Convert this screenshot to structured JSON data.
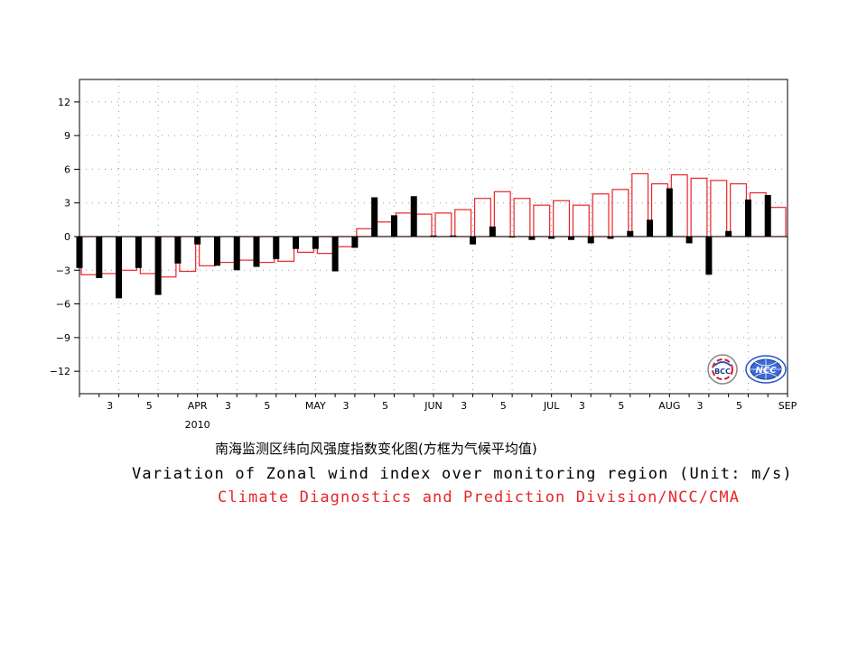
{
  "chart_data": {
    "type": "bar",
    "title": "",
    "xlabel": "",
    "ylabel": "",
    "ylim": [
      -14,
      14
    ],
    "yticks": [
      12,
      9,
      6,
      3,
      0,
      -3,
      -6,
      -9,
      -12
    ],
    "ytick_labels": [
      "12",
      "9",
      "6",
      "3",
      "0",
      "−3",
      "−6",
      "−9",
      "−12"
    ],
    "grid": true,
    "year_label": "2010",
    "xtick_labels": [
      {
        "pentad": 2,
        "label": "3"
      },
      {
        "pentad": 4,
        "label": "5"
      },
      {
        "pentad": 6,
        "label": "APR"
      },
      {
        "pentad": 8,
        "label": "3"
      },
      {
        "pentad": 10,
        "label": "5"
      },
      {
        "pentad": 12,
        "label": "MAY"
      },
      {
        "pentad": 14,
        "label": "3"
      },
      {
        "pentad": 16,
        "label": "5"
      },
      {
        "pentad": 18,
        "label": "JUN"
      },
      {
        "pentad": 20,
        "label": "3"
      },
      {
        "pentad": 22,
        "label": "5"
      },
      {
        "pentad": 24,
        "label": "JUL"
      },
      {
        "pentad": 26,
        "label": "3"
      },
      {
        "pentad": 28,
        "label": "5"
      },
      {
        "pentad": 30,
        "label": "AUG"
      },
      {
        "pentad": 32,
        "label": "3"
      },
      {
        "pentad": 34,
        "label": "5"
      },
      {
        "pentad": 36,
        "label": "SEP"
      }
    ],
    "series": [
      {
        "kind": "observed",
        "values": [
          -2.8,
          -3.7,
          -5.5,
          -2.8,
          -5.2,
          -2.4,
          -0.7,
          -2.6,
          -3.0,
          -2.7,
          -2.0,
          -1.1,
          -1.1,
          -3.1,
          -1.0,
          3.5,
          1.9,
          3.6,
          0.1,
          0.1,
          -0.7,
          0.9,
          0.0,
          -0.3,
          -0.2,
          -0.3,
          -0.6,
          -0.2,
          0.5,
          1.5,
          4.3,
          -0.6,
          -3.4,
          0.5,
          3.3,
          3.7
        ]
      },
      {
        "kind": "climatology",
        "values": [
          -3.4,
          -3.3,
          -3.0,
          -3.3,
          -3.6,
          -3.1,
          -2.6,
          -2.3,
          -2.1,
          -2.3,
          -2.2,
          -1.4,
          -1.5,
          -0.9,
          0.7,
          1.3,
          2.1,
          2.0,
          2.1,
          2.4,
          3.4,
          4.0,
          3.4,
          2.8,
          3.2,
          2.8,
          3.8,
          4.2,
          5.6,
          4.7,
          5.5,
          5.2,
          5.0,
          4.7,
          3.9,
          2.6
        ]
      }
    ],
    "colors": {
      "observed": "#000000",
      "climatology": "#e8262a"
    }
  },
  "logos": {
    "left_text": "BCC",
    "right_text": "NCC"
  },
  "captions": {
    "chinese": "南海监测区纬向风强度指数变化图(方框为气候平均值)",
    "english": "Variation of Zonal wind index over monitoring region   (Unit: m/s)",
    "organization": "Climate Diagnostics and Prediction Division/NCC/CMA"
  }
}
